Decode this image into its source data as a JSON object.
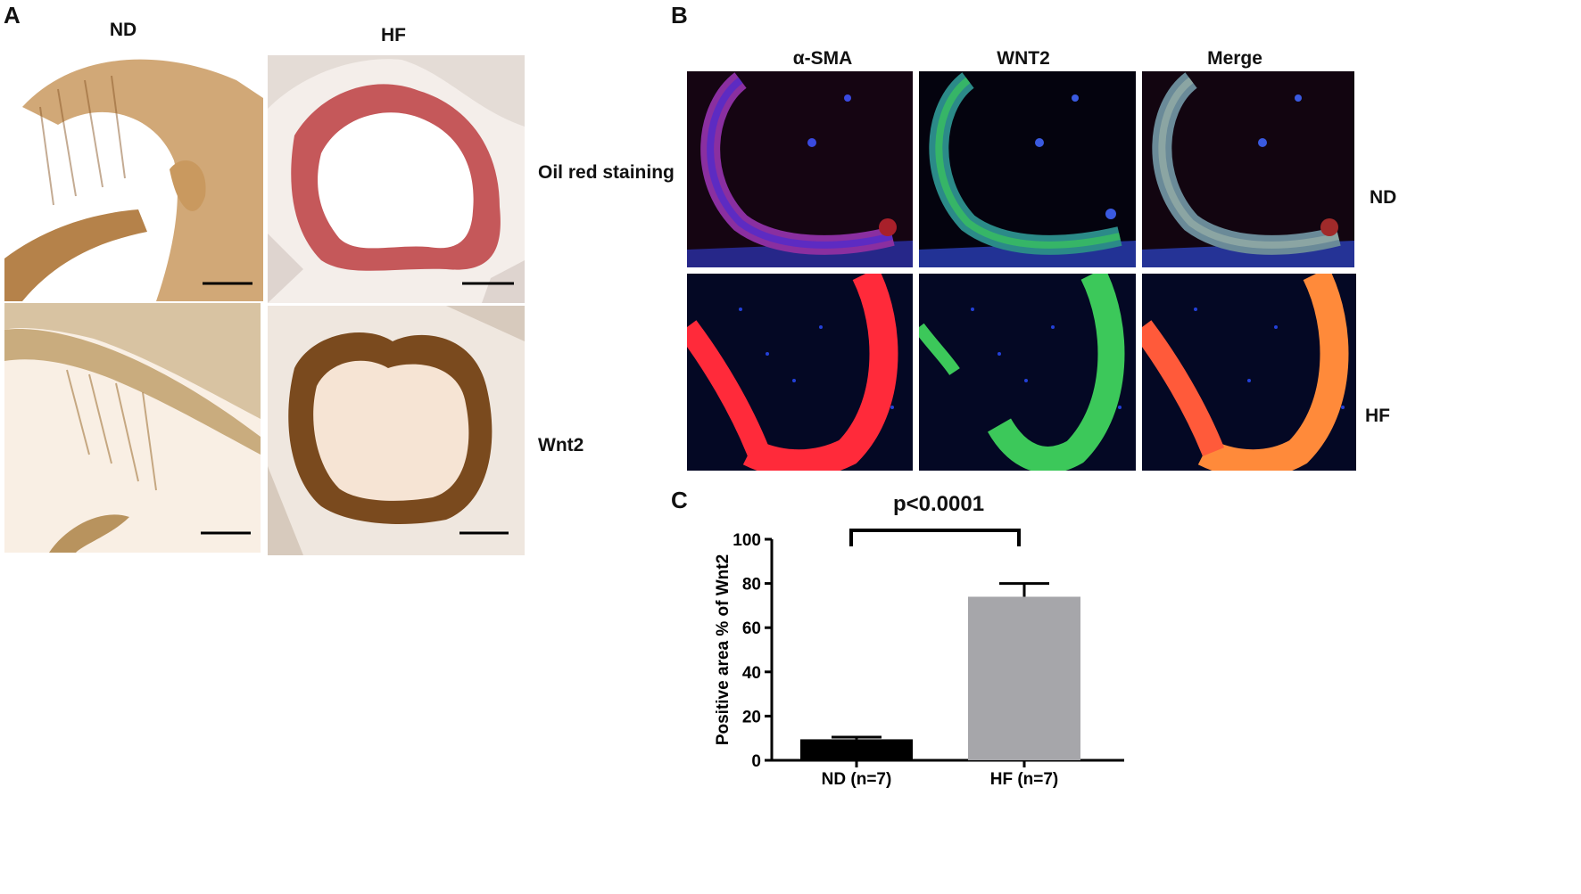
{
  "panel_a": {
    "letter": "A",
    "columns": [
      "ND",
      "HF"
    ],
    "rows": [
      "Oil red staining",
      "Wnt2"
    ]
  },
  "panel_b": {
    "letter": "B",
    "columns": [
      "α-SMA",
      "WNT2",
      "Merge"
    ],
    "rows": [
      "ND",
      "HF"
    ]
  },
  "panel_c": {
    "letter": "C",
    "significance": "p<0.0001"
  },
  "colors": {
    "nd_bar": "#000000",
    "hf_bar": "#a6a6aa",
    "he_brown": "#b5824a",
    "oil_red": "#c0474a",
    "dapi_blue": "#2340d8",
    "sma_red": "#ff2a3a",
    "wnt2_green": "#3cc85a",
    "merge_orange": "#ff8a3a"
  },
  "chart_data": {
    "type": "bar",
    "categories": [
      "ND (n=7)",
      "HF (n=7)"
    ],
    "values": [
      9.5,
      74
    ],
    "errors": [
      1,
      6
    ],
    "title": "",
    "xlabel": "",
    "ylabel": "Positive area % of Wnt2",
    "ylim": [
      0,
      100
    ],
    "yticks": [
      0,
      20,
      40,
      60,
      80,
      100
    ],
    "grid": false,
    "colors": [
      "#000000",
      "#a6a6aa"
    ]
  }
}
